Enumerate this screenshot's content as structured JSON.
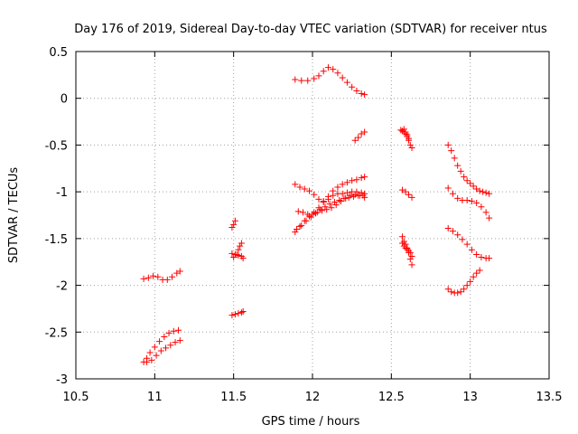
{
  "chart_data": {
    "type": "scatter",
    "title": "Day 176 of 2019, Sidereal Day-to-day VTEC variation (SDTVAR) for receiver ntus",
    "xlabel": "GPS time / hours",
    "ylabel": "SDTVAR / TECUs",
    "xlim": [
      10.5,
      13.5
    ],
    "ylim": [
      -3,
      0.5
    ],
    "xticks": [
      10.5,
      11,
      11.5,
      12,
      12.5,
      13,
      13.5
    ],
    "xtick_labels": [
      "10.5",
      "11",
      "11.5",
      "12",
      "12.5",
      "13",
      "13.5"
    ],
    "yticks": [
      0.5,
      0,
      -0.5,
      -1,
      -1.5,
      -2,
      -2.5,
      -3
    ],
    "ytick_labels": [
      "0.5",
      "0",
      "-0.5",
      "-1",
      "-1.5",
      "-2",
      "-2.5",
      "-3"
    ],
    "grid": true,
    "marker": "+",
    "marker_color": "#ff0000",
    "series": [
      {
        "name": "s1",
        "x": [
          10.93,
          10.96,
          10.99,
          11.02,
          11.05,
          11.08,
          11.11,
          11.14,
          11.16
        ],
        "y": [
          -1.93,
          -1.92,
          -1.9,
          -1.91,
          -1.94,
          -1.94,
          -1.91,
          -1.87,
          -1.85
        ]
      },
      {
        "name": "s2",
        "x": [
          10.93,
          10.95,
          10.97,
          11.0,
          11.03,
          11.06,
          11.09,
          11.12,
          11.15
        ],
        "y": [
          -2.82,
          -2.78,
          -2.72,
          -2.66,
          -2.6,
          -2.55,
          -2.51,
          -2.49,
          -2.48
        ]
      },
      {
        "name": "s3",
        "x": [
          10.95,
          10.98,
          11.01,
          11.04,
          11.07,
          11.1,
          11.13,
          11.16
        ],
        "y": [
          -2.82,
          -2.8,
          -2.75,
          -2.7,
          -2.67,
          -2.64,
          -2.61,
          -2.59
        ]
      },
      {
        "name": "s4",
        "x": [
          11.49,
          11.5,
          11.51
        ],
        "y": [
          -1.38,
          -1.35,
          -1.31
        ]
      },
      {
        "name": "s5",
        "x": [
          11.5,
          11.52,
          11.53,
          11.54,
          11.55
        ],
        "y": [
          -1.7,
          -1.67,
          -1.62,
          -1.58,
          -1.55
        ]
      },
      {
        "name": "s6",
        "x": [
          11.49,
          11.51,
          11.53,
          11.55,
          11.56
        ],
        "y": [
          -1.66,
          -1.67,
          -1.68,
          -1.69,
          -1.71
        ]
      },
      {
        "name": "s7",
        "x": [
          11.49,
          11.51,
          11.53,
          11.55,
          11.56
        ],
        "y": [
          -2.32,
          -2.31,
          -2.3,
          -2.29,
          -2.28
        ]
      },
      {
        "name": "s8",
        "x": [
          11.89,
          11.93,
          11.97,
          12.01,
          12.04,
          12.07,
          12.1,
          12.13,
          12.16,
          12.19,
          12.22,
          12.25,
          12.28,
          12.31,
          12.33
        ],
        "y": [
          0.2,
          0.19,
          0.19,
          0.21,
          0.24,
          0.29,
          0.33,
          0.31,
          0.27,
          0.22,
          0.17,
          0.12,
          0.08,
          0.05,
          0.04
        ]
      },
      {
        "name": "s9",
        "x": [
          12.27,
          12.29,
          12.31,
          12.33
        ],
        "y": [
          -0.45,
          -0.42,
          -0.38,
          -0.36
        ]
      },
      {
        "name": "s10",
        "x": [
          11.89,
          11.92,
          11.95,
          11.98,
          12.01,
          12.04,
          12.07,
          12.1,
          12.13,
          12.16,
          12.19,
          12.22,
          12.25,
          12.28,
          12.31,
          12.33
        ],
        "y": [
          -0.92,
          -0.95,
          -0.97,
          -0.99,
          -1.03,
          -1.08,
          -1.1,
          -1.08,
          -1.04,
          -1.02,
          -1.02,
          -1.01,
          -1.0,
          -1.0,
          -1.01,
          -1.02
        ]
      },
      {
        "name": "s11",
        "x": [
          11.89,
          11.92,
          11.95,
          11.98,
          12.01,
          12.04,
          12.07,
          12.1,
          12.13,
          12.16,
          12.19,
          12.22,
          12.25,
          12.28,
          12.31,
          12.33
        ],
        "y": [
          -1.43,
          -1.37,
          -1.31,
          -1.26,
          -1.22,
          -1.17,
          -1.11,
          -1.05,
          -0.99,
          -0.95,
          -0.92,
          -0.9,
          -0.88,
          -0.87,
          -0.85,
          -0.84
        ]
      },
      {
        "name": "s12",
        "x": [
          11.91,
          11.94,
          11.97,
          12.0,
          12.03,
          12.06,
          12.09,
          12.12,
          12.15,
          12.18,
          12.21,
          12.24,
          12.27,
          12.3,
          12.33
        ],
        "y": [
          -1.21,
          -1.22,
          -1.24,
          -1.24,
          -1.22,
          -1.2,
          -1.19,
          -1.17,
          -1.14,
          -1.1,
          -1.07,
          -1.04,
          -1.03,
          -1.04,
          -1.06
        ]
      },
      {
        "name": "s13",
        "x": [
          11.9,
          11.93,
          11.96,
          11.99,
          12.02,
          12.05,
          12.08,
          12.11,
          12.14,
          12.17,
          12.2,
          12.23,
          12.26,
          12.29,
          12.32
        ],
        "y": [
          -1.4,
          -1.36,
          -1.31,
          -1.27,
          -1.23,
          -1.19,
          -1.16,
          -1.13,
          -1.11,
          -1.09,
          -1.07,
          -1.06,
          -1.05,
          -1.04,
          -1.04
        ]
      },
      {
        "name": "s14",
        "x": [
          12.56,
          12.57,
          12.58,
          12.59,
          12.6,
          12.61,
          12.62,
          12.63
        ],
        "y": [
          -0.34,
          -0.35,
          -0.36,
          -0.38,
          -0.41,
          -0.45,
          -0.5,
          -0.53
        ]
      },
      {
        "name": "s15",
        "x": [
          12.58,
          12.59,
          12.6,
          12.61
        ],
        "y": [
          -0.33,
          -0.36,
          -0.39,
          -0.43
        ]
      },
      {
        "name": "s16",
        "x": [
          12.57,
          12.59,
          12.61,
          12.63
        ],
        "y": [
          -0.98,
          -1.0,
          -1.03,
          -1.06
        ]
      },
      {
        "name": "s17",
        "x": [
          12.57,
          12.58,
          12.59,
          12.6,
          12.61,
          12.62,
          12.63
        ],
        "y": [
          -1.48,
          -1.53,
          -1.56,
          -1.6,
          -1.65,
          -1.72,
          -1.78
        ]
      },
      {
        "name": "s18",
        "x": [
          12.57,
          12.58,
          12.59,
          12.6,
          12.61,
          12.62,
          12.63
        ],
        "y": [
          -1.55,
          -1.58,
          -1.6,
          -1.61,
          -1.63,
          -1.65,
          -1.69
        ]
      },
      {
        "name": "s19",
        "x": [
          12.86,
          12.88,
          12.9,
          12.92,
          12.94,
          12.96,
          12.98,
          13.0,
          13.02,
          13.04,
          13.06,
          13.08,
          13.1,
          13.12
        ],
        "y": [
          -0.5,
          -0.56,
          -0.64,
          -0.72,
          -0.78,
          -0.84,
          -0.88,
          -0.91,
          -0.94,
          -0.97,
          -0.99,
          -1.0,
          -1.01,
          -1.02
        ]
      },
      {
        "name": "s20",
        "x": [
          12.86,
          12.89,
          12.92,
          12.95,
          12.98,
          13.01,
          13.04,
          13.07,
          13.1,
          13.12
        ],
        "y": [
          -0.96,
          -1.02,
          -1.07,
          -1.09,
          -1.09,
          -1.1,
          -1.12,
          -1.16,
          -1.22,
          -1.28
        ]
      },
      {
        "name": "s21",
        "x": [
          12.86,
          12.89,
          12.92,
          12.95,
          12.98,
          13.01,
          13.04,
          13.07,
          13.1,
          13.12
        ],
        "y": [
          -1.39,
          -1.42,
          -1.46,
          -1.51,
          -1.56,
          -1.62,
          -1.67,
          -1.7,
          -1.71,
          -1.71
        ]
      },
      {
        "name": "s22",
        "x": [
          12.86,
          12.88,
          12.9,
          12.92,
          12.94,
          12.96,
          12.98,
          13.0,
          13.02,
          13.04,
          13.06
        ],
        "y": [
          -2.04,
          -2.07,
          -2.08,
          -2.08,
          -2.07,
          -2.04,
          -2.0,
          -1.96,
          -1.91,
          -1.87,
          -1.84
        ]
      }
    ]
  }
}
